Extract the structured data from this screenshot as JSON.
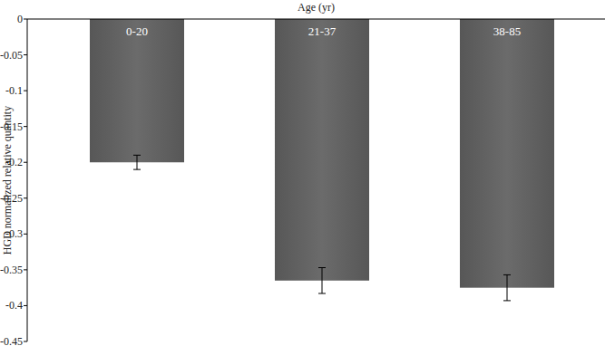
{
  "chart_data": {
    "type": "bar",
    "title": "Age (yr)",
    "y_label": "HGD normalized relative quantity",
    "categories": [
      "0-20",
      "21-37",
      "38-85"
    ],
    "values": [
      -0.2,
      -0.365,
      -0.375
    ],
    "errors": [
      0.01,
      0.018,
      0.018
    ],
    "color": "#575757",
    "ylim": [
      0,
      -0.45
    ],
    "yticks": [
      0,
      -0.05,
      -0.1,
      -0.15,
      -0.2,
      -0.25,
      -0.3,
      -0.35,
      -0.4,
      -0.45
    ],
    "grid": false
  }
}
